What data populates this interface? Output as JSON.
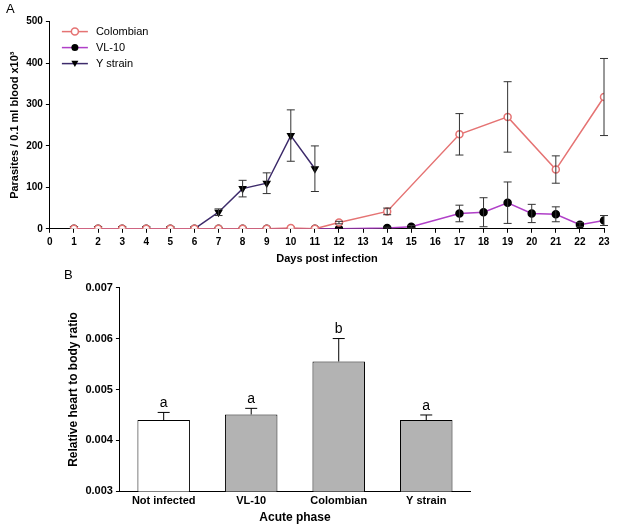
{
  "chart_data": [
    {
      "type": "line",
      "title": "A",
      "xlabel": "Days post infection",
      "ylabel": "Parasites / 0.1 ml blood x10³",
      "xlim": [
        0,
        23
      ],
      "xticks": [
        0,
        1,
        2,
        3,
        4,
        5,
        6,
        7,
        8,
        9,
        10,
        11,
        12,
        13,
        14,
        15,
        16,
        17,
        18,
        19,
        20,
        21,
        22,
        23
      ],
      "ylim": [
        0,
        500
      ],
      "yticks": [
        0,
        100,
        200,
        300,
        400,
        500
      ],
      "grid": false,
      "legend": "upper left",
      "series": [
        {
          "name": "Colombian",
          "color": "#e57373",
          "marker": "circle-open",
          "x": [
            1,
            2,
            3,
            4,
            5,
            6,
            7,
            8,
            9,
            10,
            11,
            12,
            14,
            17,
            19,
            21,
            23
          ],
          "values": [
            0,
            0,
            0,
            0,
            0,
            0,
            0,
            0,
            0,
            2,
            0,
            15,
            42,
            228,
            270,
            143,
            318
          ],
          "errors": [
            0,
            0,
            0,
            0,
            0,
            0,
            0,
            0,
            0,
            0,
            0,
            3,
            8,
            50,
            85,
            33,
            93
          ]
        },
        {
          "name": "VL-10",
          "color": "#b040c8",
          "marker": "circle",
          "x": [
            1,
            2,
            3,
            4,
            5,
            6,
            7,
            8,
            9,
            10,
            11,
            12,
            14,
            15,
            17,
            18,
            19,
            20,
            21,
            22,
            23
          ],
          "values": [
            0,
            0,
            0,
            0,
            0,
            0,
            0,
            0,
            0,
            0,
            0,
            0,
            2,
            5,
            37,
            40,
            63,
            37,
            35,
            10,
            20
          ],
          "errors": [
            0,
            0,
            0,
            0,
            0,
            0,
            0,
            0,
            0,
            0,
            0,
            0,
            2,
            3,
            20,
            35,
            50,
            22,
            18,
            5,
            12
          ]
        },
        {
          "name": "Y strain",
          "color": "#3d2b6b",
          "marker": "triangle-down",
          "x": [
            1,
            2,
            3,
            4,
            5,
            6,
            7,
            8,
            9,
            10,
            11
          ],
          "values": [
            0,
            0,
            0,
            0,
            0,
            0,
            40,
            97,
            110,
            225,
            145
          ],
          "errors": [
            0,
            0,
            0,
            0,
            0,
            0,
            8,
            20,
            25,
            62,
            55
          ]
        }
      ]
    },
    {
      "type": "bar",
      "title": "B",
      "xlabel": "Acute phase",
      "ylabel": "Relative heart to body ratio",
      "categories": [
        "Not infected",
        "VL-10",
        "Colombian",
        "Y strain"
      ],
      "values": [
        0.0044,
        0.00451,
        0.00555,
        0.0044
      ],
      "errors": [
        0.00015,
        0.00012,
        0.00045,
        0.0001
      ],
      "significance_labels": [
        "a",
        "a",
        "b",
        "a"
      ],
      "colors": [
        "#ffffff",
        "#b3b3b3",
        "#b3b3b3",
        "#b3b3b3"
      ],
      "ylim": [
        0.003,
        0.007
      ],
      "yticks": [
        0.003,
        0.004,
        0.005,
        0.006,
        0.007
      ],
      "grid": false
    }
  ]
}
